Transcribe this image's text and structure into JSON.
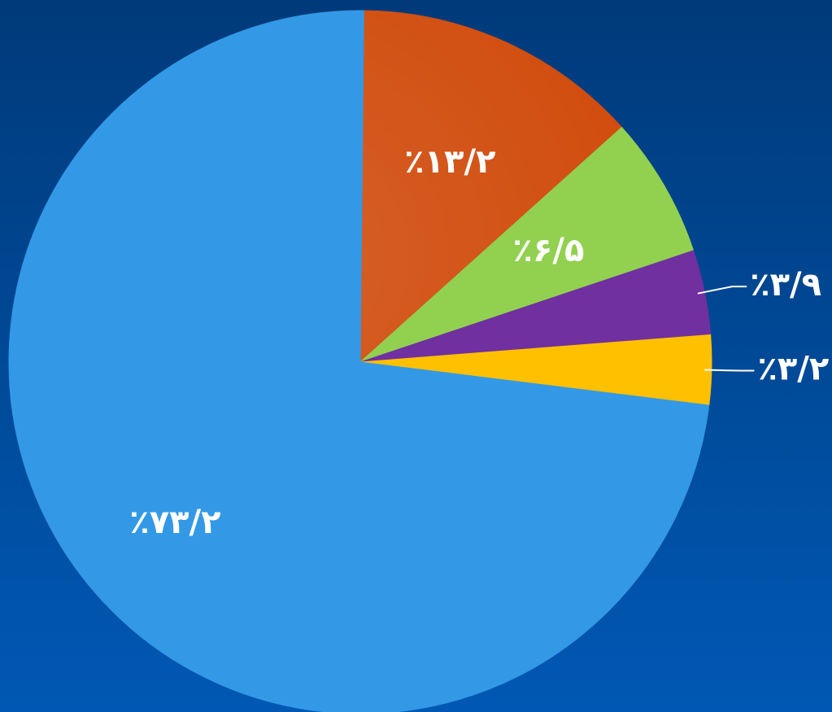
{
  "chart_data": {
    "type": "pie",
    "categories": [
      null,
      null,
      null,
      null,
      null
    ],
    "values": [
      13.2,
      6.5,
      3.9,
      3.2,
      73.2
    ],
    "value_labels": [
      "٪۱۳/۲",
      "٪۶/۵",
      "٪۳/۹",
      "٪۳/۲",
      "٪۷۳/۲"
    ],
    "colors": [
      "#d04a0a",
      "#92d050",
      "#7030a0",
      "#ffc000",
      "#3399e6"
    ]
  }
}
